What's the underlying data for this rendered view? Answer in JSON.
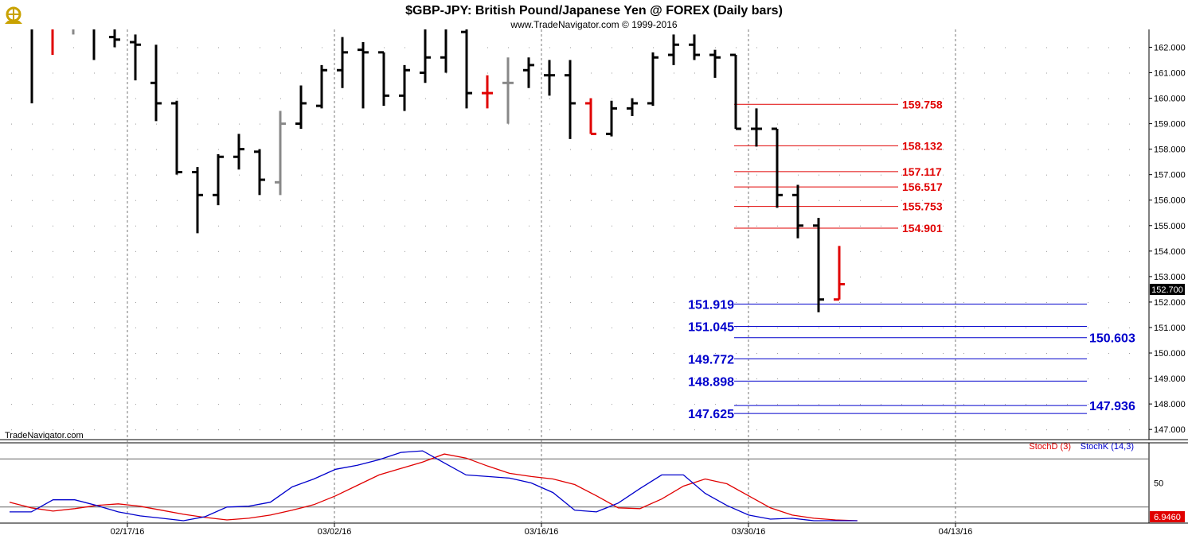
{
  "header": {
    "title": "$GBP-JPY:  British Pound/Japanese Yen @ FOREX  (Daily bars)",
    "copyright": "www.TradeNavigator.com © 1999-2016",
    "watermark": "TradeNavigator.com",
    "logo_icon": "ship-wheel-logo-icon"
  },
  "colors": {
    "up_bar": "#000000",
    "down_bar": "#e00000",
    "green_bar": "#00cc00",
    "gray_bar": "#888888",
    "fib_red": "#e00000",
    "fib_blue": "#0000cc",
    "stoch_d": "#e00000",
    "stoch_k": "#0000cc"
  },
  "chart_data": [
    {
      "type": "ohlc",
      "title": "$GBP-JPY:  British Pound/Japanese Yen @ FOREX  (Daily bars)",
      "y_range": [
        146.6,
        162.7
      ],
      "y_ticks": [
        "147.000",
        "148.000",
        "149.000",
        "150.000",
        "151.000",
        "152.000",
        "153.000",
        "154.000",
        "155.000",
        "156.000",
        "157.000",
        "158.000",
        "159.000",
        "160.000",
        "161.000",
        "162.000"
      ],
      "x_labels": [
        {
          "label": "02/17/16",
          "index": 5
        },
        {
          "label": "03/02/16",
          "index": 15
        },
        {
          "label": "03/16/16",
          "index": 25
        },
        {
          "label": "03/30/16",
          "index": 35
        },
        {
          "label": "04/13/16",
          "index": 45
        }
      ],
      "last_price": "152.700",
      "bars": [
        {
          "h": 162.8,
          "l": 159.8,
          "o": 162.8,
          "c": 162.8,
          "color": "black"
        },
        {
          "h": 162.8,
          "l": 161.7,
          "o": 162.8,
          "c": 162.8,
          "color": "red"
        },
        {
          "h": 162.8,
          "l": 162.5,
          "o": 162.8,
          "c": 162.8,
          "color": "gray"
        },
        {
          "h": 162.8,
          "l": 161.5,
          "o": 162.8,
          "c": 162.8,
          "color": "black"
        },
        {
          "h": 162.7,
          "l": 162.0,
          "o": 162.4,
          "c": 162.3,
          "color": "black"
        },
        {
          "h": 162.5,
          "l": 160.7,
          "o": 162.2,
          "c": 162.1,
          "color": "black"
        },
        {
          "h": 162.1,
          "l": 159.1,
          "o": 160.6,
          "c": 159.8,
          "color": "black"
        },
        {
          "h": 159.9,
          "l": 157.0,
          "o": 159.8,
          "c": 157.1,
          "color": "black"
        },
        {
          "h": 157.3,
          "l": 154.7,
          "o": 157.1,
          "c": 156.2,
          "color": "black"
        },
        {
          "h": 157.8,
          "l": 155.8,
          "o": 156.2,
          "c": 157.7,
          "color": "black"
        },
        {
          "h": 158.6,
          "l": 157.2,
          "o": 157.7,
          "c": 158.0,
          "color": "black"
        },
        {
          "h": 158.0,
          "l": 156.2,
          "o": 157.9,
          "c": 156.8,
          "color": "black"
        },
        {
          "h": 159.5,
          "l": 156.2,
          "o": 156.7,
          "c": 159.0,
          "color": "gray"
        },
        {
          "h": 160.5,
          "l": 158.8,
          "o": 159.0,
          "c": 159.8,
          "color": "black"
        },
        {
          "h": 161.3,
          "l": 159.6,
          "o": 159.7,
          "c": 161.1,
          "color": "black"
        },
        {
          "h": 162.4,
          "l": 160.4,
          "o": 161.1,
          "c": 161.8,
          "color": "black"
        },
        {
          "h": 162.2,
          "l": 159.6,
          "o": 161.9,
          "c": 161.8,
          "color": "black"
        },
        {
          "h": 161.8,
          "l": 159.7,
          "o": 161.8,
          "c": 160.1,
          "color": "black"
        },
        {
          "h": 161.3,
          "l": 159.5,
          "o": 160.1,
          "c": 161.1,
          "color": "black"
        },
        {
          "h": 162.7,
          "l": 160.6,
          "o": 161.0,
          "c": 161.6,
          "color": "black"
        },
        {
          "h": 162.7,
          "l": 161.0,
          "o": 161.6,
          "c": 162.7,
          "color": "black"
        },
        {
          "h": 162.7,
          "l": 159.6,
          "o": 162.6,
          "c": 160.2,
          "color": "black"
        },
        {
          "h": 160.9,
          "l": 159.6,
          "o": 160.2,
          "c": 160.2,
          "color": "red"
        },
        {
          "h": 161.6,
          "l": 159.0,
          "o": 160.6,
          "c": 160.6,
          "color": "gray"
        },
        {
          "h": 161.6,
          "l": 160.4,
          "o": 161.1,
          "c": 161.3,
          "color": "black"
        },
        {
          "h": 161.5,
          "l": 160.1,
          "o": 160.9,
          "c": 160.9,
          "color": "black"
        },
        {
          "h": 161.5,
          "l": 158.4,
          "o": 160.9,
          "c": 159.8,
          "color": "black"
        },
        {
          "h": 160.0,
          "l": 158.6,
          "o": 159.8,
          "c": 158.6,
          "color": "red"
        },
        {
          "h": 159.9,
          "l": 158.5,
          "o": 158.6,
          "c": 159.6,
          "color": "black"
        },
        {
          "h": 160.0,
          "l": 159.3,
          "o": 159.6,
          "c": 159.8,
          "color": "black"
        },
        {
          "h": 161.8,
          "l": 159.7,
          "o": 159.8,
          "c": 161.6,
          "color": "black"
        },
        {
          "h": 162.5,
          "l": 161.3,
          "o": 161.7,
          "c": 162.1,
          "color": "black"
        },
        {
          "h": 162.5,
          "l": 161.5,
          "o": 162.1,
          "c": 161.7,
          "color": "black"
        },
        {
          "h": 161.9,
          "l": 160.8,
          "o": 161.7,
          "c": 161.6,
          "color": "black"
        },
        {
          "h": 161.7,
          "l": 158.8,
          "o": 161.7,
          "c": 158.8,
          "color": "black"
        },
        {
          "h": 159.6,
          "l": 158.1,
          "o": 158.8,
          "c": 158.8,
          "color": "black"
        },
        {
          "h": 158.8,
          "l": 155.7,
          "o": 158.8,
          "c": 156.2,
          "color": "black"
        },
        {
          "h": 156.6,
          "l": 154.5,
          "o": 156.2,
          "c": 155.0,
          "color": "black"
        },
        {
          "h": 155.3,
          "l": 151.6,
          "o": 155.0,
          "c": 152.1,
          "color": "black"
        },
        {
          "h": 154.2,
          "l": 152.1,
          "o": 152.1,
          "c": 152.7,
          "color": "red"
        }
      ],
      "fib_levels_red": [
        "159.758",
        "158.132",
        "157.117",
        "156.517",
        "155.753",
        "154.901"
      ],
      "fib_levels_blue_left": [
        "151.919",
        "151.045",
        "149.772",
        "148.898",
        "147.625"
      ],
      "fib_levels_blue_right": [
        "150.603",
        "147.936"
      ]
    },
    {
      "type": "line",
      "title": "",
      "y_range": [
        0,
        100
      ],
      "y_ticks": [
        "50"
      ],
      "last_value": "6.9460",
      "reference_lines": [
        20,
        80
      ],
      "series": [
        {
          "name": "StochD (3)",
          "color": "#e00000",
          "values": [
            26,
            19,
            15,
            18,
            22,
            24,
            21,
            16,
            11,
            7,
            4,
            6,
            10,
            16,
            23,
            34,
            47,
            60,
            68,
            76,
            86,
            81,
            71,
            62,
            58,
            55,
            48,
            34,
            19,
            18,
            30,
            46,
            55,
            49,
            34,
            19,
            10,
            6,
            4,
            3
          ]
        },
        {
          "name": "StochK (14,3)",
          "color": "#0000cc",
          "values": [
            14,
            14,
            29,
            29,
            22,
            14,
            9,
            6,
            3,
            8,
            20,
            21,
            26,
            45,
            55,
            67,
            72,
            79,
            88,
            90,
            75,
            60,
            58,
            56,
            50,
            38,
            16,
            14,
            25,
            43,
            60,
            60,
            37,
            22,
            10,
            5,
            6,
            3,
            3,
            3
          ]
        }
      ]
    }
  ]
}
